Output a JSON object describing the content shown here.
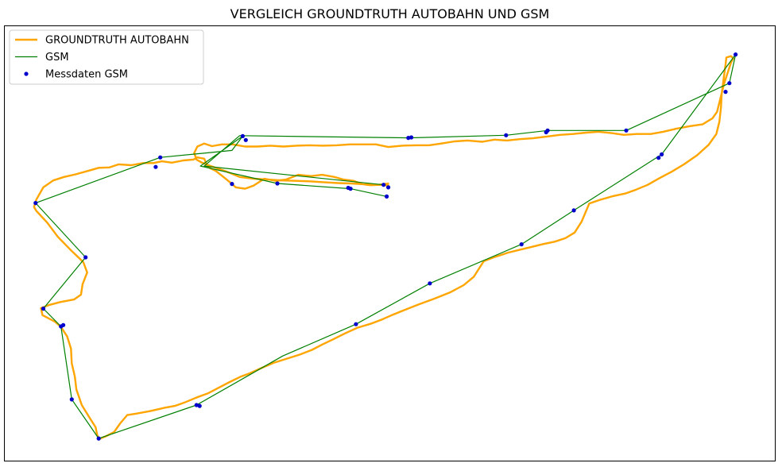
{
  "chart_data": {
    "type": "line",
    "title": "VERGLEICH GROUNDTRUTH AUTOBAHN UND GSM",
    "xlabel": "",
    "ylabel": "",
    "axes_visible": false,
    "grid": false,
    "xlim": [
      0,
      100
    ],
    "ylim": [
      0,
      100
    ],
    "legend_position": "upper-left",
    "colors": {
      "groundtruth": "#ffa500",
      "gsm_line": "#008000",
      "gsm_points": "#0000cc",
      "frame": "#000000"
    },
    "series": [
      {
        "name": "GROUNDTRUTH AUTOBAHN",
        "kind": "line",
        "points": [
          [
            49.9,
            63.3
          ],
          [
            48.8,
            63.5
          ],
          [
            47.5,
            63.4
          ],
          [
            46.5,
            63.6
          ],
          [
            45.3,
            64.4
          ],
          [
            44.0,
            64.7
          ],
          [
            42.8,
            65.3
          ],
          [
            41.2,
            65.8
          ],
          [
            39.8,
            65.5
          ],
          [
            38.1,
            65.8
          ],
          [
            36.5,
            64.7
          ],
          [
            35.2,
            64.4
          ],
          [
            33.7,
            64.9
          ],
          [
            32.3,
            63.3
          ],
          [
            31.2,
            62.6
          ],
          [
            30.0,
            62.9
          ],
          [
            29.3,
            64.0
          ],
          [
            28.4,
            65.3
          ],
          [
            27.4,
            66.7
          ],
          [
            26.7,
            67.3
          ],
          [
            26.3,
            67.8
          ],
          [
            25.9,
            69.5
          ],
          [
            25.0,
            69.8
          ],
          [
            24.5,
            69.3
          ],
          [
            23.2,
            69.1
          ],
          [
            21.7,
            68.6
          ],
          [
            20.4,
            68.9
          ],
          [
            19.3,
            68.5
          ],
          [
            18.0,
            68.5
          ],
          [
            16.4,
            68.0
          ],
          [
            14.8,
            68.2
          ],
          [
            13.6,
            67.5
          ],
          [
            12.2,
            67.4
          ],
          [
            10.8,
            66.7
          ],
          [
            9.2,
            65.9
          ],
          [
            7.7,
            65.3
          ],
          [
            6.3,
            64.5
          ],
          [
            5.0,
            62.9
          ],
          [
            4.1,
            60.1
          ],
          [
            3.8,
            58.4
          ],
          [
            4.1,
            57.5
          ],
          [
            5.5,
            54.8
          ],
          [
            6.9,
            51.5
          ],
          [
            8.5,
            48.6
          ],
          [
            10.2,
            45.7
          ],
          [
            10.7,
            43.3
          ],
          [
            10.1,
            40.6
          ],
          [
            9.9,
            38.2
          ],
          [
            9.0,
            37.1
          ],
          [
            7.2,
            36.5
          ],
          [
            5.7,
            35.8
          ],
          [
            4.7,
            35.1
          ],
          [
            4.9,
            33.5
          ],
          [
            6.5,
            32.0
          ],
          [
            7.3,
            30.8
          ],
          [
            8.1,
            28.6
          ],
          [
            8.6,
            25.8
          ],
          [
            8.7,
            22.4
          ],
          [
            9.1,
            19.3
          ],
          [
            9.3,
            16.4
          ],
          [
            10.0,
            12.8
          ],
          [
            11.0,
            9.9
          ],
          [
            11.8,
            7.7
          ],
          [
            12.0,
            5.9
          ],
          [
            12.3,
            5.0
          ],
          [
            13.1,
            5.6
          ],
          [
            14.2,
            6.6
          ],
          [
            15.0,
            8.6
          ],
          [
            15.9,
            10.5
          ],
          [
            17.0,
            10.8
          ],
          [
            18.9,
            11.4
          ],
          [
            20.8,
            12.2
          ],
          [
            22.1,
            12.6
          ],
          [
            23.5,
            13.5
          ],
          [
            25.0,
            14.6
          ],
          [
            26.4,
            15.5
          ],
          [
            27.8,
            16.8
          ],
          [
            29.1,
            18.0
          ],
          [
            30.6,
            19.3
          ],
          [
            31.8,
            20.1
          ],
          [
            33.3,
            21.3
          ],
          [
            34.9,
            22.5
          ],
          [
            36.5,
            23.4
          ],
          [
            38.3,
            24.4
          ],
          [
            39.9,
            25.5
          ],
          [
            41.3,
            26.8
          ],
          [
            42.6,
            27.9
          ],
          [
            44.2,
            29.3
          ],
          [
            45.8,
            30.6
          ],
          [
            47.5,
            31.5
          ],
          [
            49.0,
            32.5
          ],
          [
            50.4,
            33.6
          ],
          [
            52.1,
            34.8
          ],
          [
            53.8,
            36.0
          ],
          [
            55.8,
            37.3
          ],
          [
            57.8,
            38.7
          ],
          [
            59.6,
            40.4
          ],
          [
            60.9,
            42.3
          ],
          [
            62.2,
            45.9
          ],
          [
            63.5,
            46.8
          ],
          [
            65.4,
            47.9
          ],
          [
            67.0,
            48.6
          ],
          [
            68.4,
            49.2
          ],
          [
            69.8,
            49.8
          ],
          [
            71.4,
            50.4
          ],
          [
            72.8,
            51.2
          ],
          [
            74.0,
            52.5
          ],
          [
            74.9,
            55.0
          ],
          [
            75.9,
            59.2
          ],
          [
            77.4,
            60.1
          ],
          [
            79.0,
            60.9
          ],
          [
            80.6,
            61.5
          ],
          [
            82.0,
            62.4
          ],
          [
            83.5,
            63.5
          ],
          [
            85.0,
            65.0
          ],
          [
            86.6,
            66.5
          ],
          [
            88.2,
            68.2
          ],
          [
            89.9,
            70.3
          ],
          [
            91.4,
            72.7
          ],
          [
            92.4,
            75.2
          ],
          [
            92.8,
            78.0
          ],
          [
            93.0,
            81.3
          ],
          [
            93.1,
            84.4
          ],
          [
            93.4,
            88.5
          ],
          [
            93.6,
            91.2
          ],
          [
            93.7,
            92.8
          ],
          [
            94.3,
            93.1
          ],
          [
            94.6,
            92.6
          ],
          [
            94.3,
            91.6
          ],
          [
            94.0,
            90.0
          ],
          [
            93.4,
            86.7
          ],
          [
            92.5,
            80.3
          ],
          [
            91.9,
            78.8
          ],
          [
            90.6,
            77.4
          ],
          [
            89.0,
            77.0
          ],
          [
            87.2,
            76.4
          ],
          [
            85.5,
            75.7
          ],
          [
            83.9,
            75.2
          ],
          [
            82.1,
            75.2
          ],
          [
            80.4,
            75.0
          ],
          [
            78.8,
            75.4
          ],
          [
            77.1,
            75.7
          ],
          [
            75.5,
            75.5
          ],
          [
            73.8,
            75.2
          ],
          [
            72.1,
            75.0
          ],
          [
            70.4,
            74.6
          ],
          [
            68.6,
            74.2
          ],
          [
            66.9,
            74.0
          ],
          [
            65.2,
            73.7
          ],
          [
            63.6,
            73.9
          ],
          [
            62.0,
            73.4
          ],
          [
            60.1,
            73.7
          ],
          [
            58.4,
            73.5
          ],
          [
            56.7,
            73.0
          ],
          [
            55.1,
            72.6
          ],
          [
            53.4,
            72.6
          ],
          [
            51.6,
            72.5
          ],
          [
            49.8,
            72.2
          ],
          [
            48.2,
            72.8
          ],
          [
            46.5,
            72.8
          ],
          [
            44.8,
            72.8
          ],
          [
            43.1,
            72.6
          ],
          [
            41.3,
            72.5
          ],
          [
            39.6,
            72.6
          ],
          [
            37.9,
            72.5
          ],
          [
            36.2,
            72.3
          ],
          [
            34.5,
            72.5
          ],
          [
            32.8,
            72.3
          ],
          [
            31.2,
            72.3
          ],
          [
            29.6,
            72.8
          ],
          [
            28.2,
            72.8
          ],
          [
            26.9,
            72.4
          ],
          [
            25.9,
            73.0
          ],
          [
            25.0,
            72.3
          ],
          [
            24.6,
            70.8
          ],
          [
            24.9,
            69.3
          ],
          [
            25.6,
            68.6
          ],
          [
            26.3,
            68.1
          ],
          [
            27.6,
            67.3
          ],
          [
            29.0,
            66.4
          ],
          [
            30.5,
            65.3
          ],
          [
            32.3,
            64.9
          ],
          [
            34.2,
            64.7
          ],
          [
            36.0,
            64.5
          ],
          [
            37.8,
            64.4
          ],
          [
            39.6,
            64.3
          ],
          [
            41.4,
            64.1
          ],
          [
            43.3,
            63.9
          ],
          [
            45.0,
            63.8
          ],
          [
            46.8,
            63.6
          ],
          [
            48.5,
            63.5
          ],
          [
            49.9,
            63.8
          ]
        ]
      },
      {
        "name": "GSM",
        "kind": "line",
        "points": [
          [
            49.6,
            60.8
          ],
          [
            44.9,
            62.6
          ],
          [
            35.4,
            63.8
          ],
          [
            25.4,
            67.8
          ],
          [
            30.9,
            74.7
          ],
          [
            29.5,
            71.4
          ],
          [
            20.2,
            69.8
          ],
          [
            4.0,
            59.3
          ],
          [
            10.5,
            46.8
          ],
          [
            5.0,
            35.0
          ],
          [
            7.3,
            30.9
          ],
          [
            8.7,
            14.1
          ],
          [
            12.2,
            5.1
          ],
          [
            24.9,
            12.8
          ],
          [
            36.1,
            24.1
          ],
          [
            45.6,
            31.4
          ],
          [
            55.2,
            40.8
          ],
          [
            67.1,
            49.8
          ],
          [
            73.9,
            57.6
          ],
          [
            85.3,
            70.5
          ],
          [
            94.9,
            93.5
          ],
          [
            94.1,
            86.9
          ],
          [
            80.7,
            76.0
          ],
          [
            70.5,
            76.0
          ],
          [
            65.1,
            74.9
          ],
          [
            52.4,
            74.3
          ],
          [
            30.5,
            74.8
          ],
          [
            25.9,
            67.8
          ],
          [
            49.2,
            63.5
          ]
        ]
      },
      {
        "name": "Messdaten GSM",
        "kind": "scatter",
        "points": [
          [
            49.6,
            60.8
          ],
          [
            49.2,
            63.5
          ],
          [
            49.8,
            62.9
          ],
          [
            44.9,
            62.6
          ],
          [
            44.6,
            62.8
          ],
          [
            35.4,
            63.8
          ],
          [
            29.5,
            63.7
          ],
          [
            30.9,
            74.7
          ],
          [
            31.3,
            73.8
          ],
          [
            20.2,
            69.8
          ],
          [
            19.6,
            67.6
          ],
          [
            4.0,
            59.3
          ],
          [
            10.5,
            46.8
          ],
          [
            5.0,
            35.0
          ],
          [
            7.3,
            30.9
          ],
          [
            7.6,
            31.2
          ],
          [
            8.7,
            14.1
          ],
          [
            12.2,
            5.1
          ],
          [
            24.9,
            12.8
          ],
          [
            25.3,
            12.6
          ],
          [
            45.6,
            31.4
          ],
          [
            55.2,
            40.8
          ],
          [
            67.1,
            49.8
          ],
          [
            73.9,
            57.6
          ],
          [
            85.3,
            70.5
          ],
          [
            84.9,
            69.7
          ],
          [
            94.9,
            93.5
          ],
          [
            94.1,
            86.9
          ],
          [
            93.6,
            84.9
          ],
          [
            80.7,
            76.0
          ],
          [
            70.5,
            76.0
          ],
          [
            70.3,
            75.6
          ],
          [
            65.1,
            74.9
          ],
          [
            52.4,
            74.3
          ],
          [
            52.8,
            74.4
          ]
        ]
      }
    ]
  }
}
